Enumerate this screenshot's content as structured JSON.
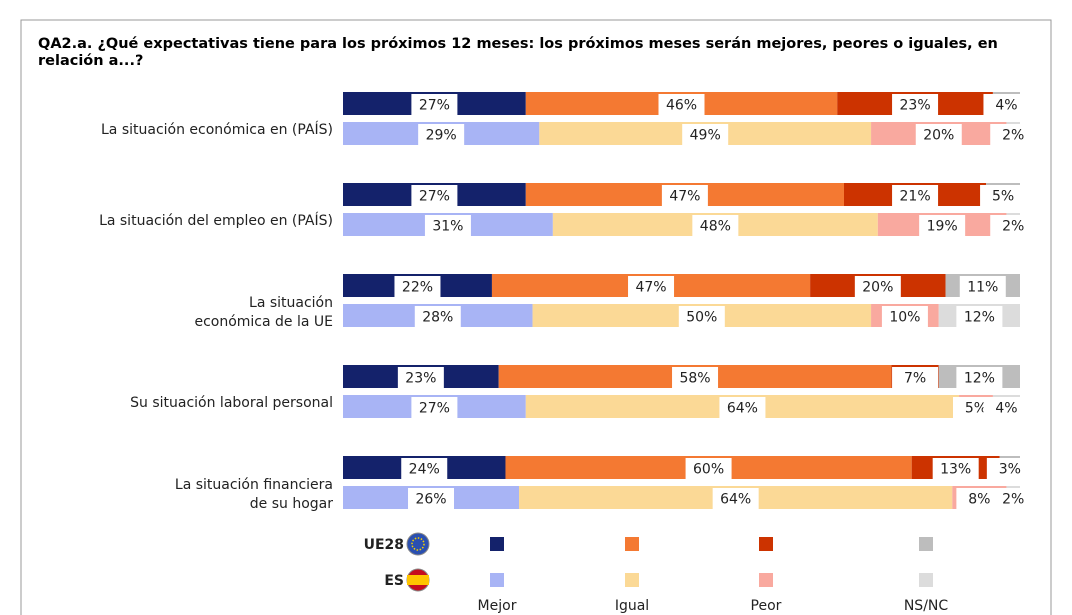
{
  "chart_data": {
    "type": "stacked-bar-horizontal",
    "title": "QA2.a. ¿Qué expectativas tiene para los próximos 12 meses: los próximos meses serán mejores, peores o iguales, en relación a...?",
    "categories": [
      [
        "La situación económica en (PAÍS)"
      ],
      [
        "La situación del empleo en (PAÍS)"
      ],
      [
        "La situación",
        "económica de la UE"
      ],
      [
        "Su situación laboral personal"
      ],
      [
        "La situación financiera",
        "de su hogar"
      ]
    ],
    "responses": [
      "Mejor",
      "Igual",
      "Peor",
      "NS/NC"
    ],
    "series": [
      {
        "name": "UE28",
        "colors": [
          "#14226b",
          "#f47932",
          "#cc3300",
          "#bdbdbd"
        ],
        "values": [
          [
            27,
            46,
            23,
            4
          ],
          [
            27,
            47,
            21,
            5
          ],
          [
            22,
            47,
            20,
            11
          ],
          [
            23,
            58,
            7,
            12
          ],
          [
            24,
            60,
            13,
            3
          ]
        ],
        "value_labels": [
          [
            "27%",
            "46%",
            "23%",
            "4%"
          ],
          [
            "27%",
            "47%",
            "21%",
            "5%"
          ],
          [
            "22%",
            "47%",
            "20%",
            "11%"
          ],
          [
            "23%",
            "58%",
            "7%",
            "12%"
          ],
          [
            "24%",
            "60%",
            "13%",
            "3%"
          ]
        ]
      },
      {
        "name": "ES",
        "colors": [
          "#a8b4f5",
          "#fbd996",
          "#f9a99f",
          "#dcdcdc"
        ],
        "values": [
          [
            29,
            49,
            20,
            2
          ],
          [
            31,
            48,
            19,
            2
          ],
          [
            28,
            50,
            10,
            12
          ],
          [
            27,
            64,
            5,
            4
          ],
          [
            26,
            64,
            8,
            2
          ]
        ],
        "value_labels": [
          [
            "29%",
            "49%",
            "20%",
            "2%"
          ],
          [
            "31%",
            "48%",
            "19%",
            "2%"
          ],
          [
            "28%",
            "50%",
            "10%",
            "12%"
          ],
          [
            "27%",
            "64%",
            "5%",
            "4%"
          ],
          [
            "26%",
            "64%",
            "8%",
            "2%"
          ]
        ]
      }
    ]
  }
}
